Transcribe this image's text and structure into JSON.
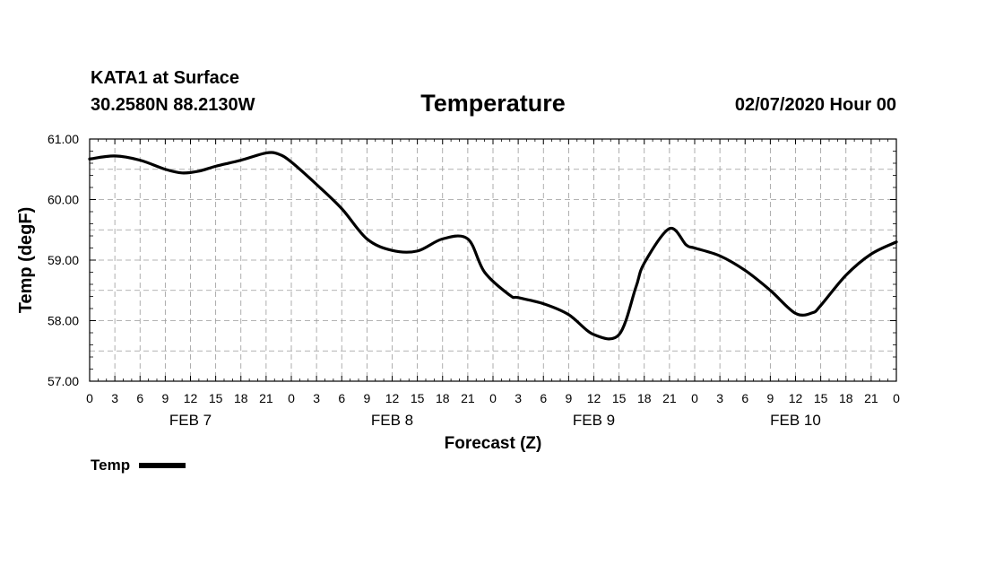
{
  "header": {
    "station": "KATA1 at Surface",
    "coords": "30.2580N 88.2130W",
    "title": "Temperature",
    "run": "02/07/2020 Hour 00"
  },
  "legend": {
    "label": "Temp"
  },
  "chart_data": {
    "type": "line",
    "title": "Temperature",
    "xlabel": "Forecast (Z)",
    "ylabel": "Temp (degF)",
    "ylim": [
      57.0,
      61.0
    ],
    "xlim": [
      0,
      96
    ],
    "grid": true,
    "legend_position": "bottom-left",
    "yticks": [
      "57.00",
      "58.00",
      "59.00",
      "60.00",
      "61.00"
    ],
    "xtick_labels": [
      "0",
      "3",
      "6",
      "9",
      "12",
      "15",
      "18",
      "21",
      "0",
      "3",
      "6",
      "9",
      "12",
      "15",
      "18",
      "21",
      "0",
      "3",
      "6",
      "9",
      "12",
      "15",
      "18",
      "21",
      "0",
      "3",
      "6",
      "9",
      "12",
      "15",
      "18",
      "21",
      "0"
    ],
    "day_labels": [
      {
        "label": "FEB 7",
        "hour": 12
      },
      {
        "label": "FEB 8",
        "hour": 36
      },
      {
        "label": "FEB 9",
        "hour": 60
      },
      {
        "label": "FEB 10",
        "hour": 84
      }
    ],
    "series": [
      {
        "name": "Temp",
        "color": "#000000",
        "x": [
          0,
          3,
          6,
          9,
          11,
          13,
          15,
          18,
          21,
          22.5,
          24,
          27,
          30,
          33,
          36,
          39,
          42,
          45,
          47,
          50,
          51,
          54,
          57,
          60,
          63,
          65,
          66,
          69,
          71,
          72,
          75,
          78,
          81,
          84,
          86,
          87,
          90,
          93,
          96
        ],
        "values": [
          60.67,
          60.72,
          60.65,
          60.5,
          60.44,
          60.47,
          60.55,
          60.65,
          60.77,
          60.75,
          60.62,
          60.25,
          59.85,
          59.35,
          59.16,
          59.15,
          59.35,
          59.35,
          58.8,
          58.42,
          58.38,
          58.28,
          58.1,
          57.77,
          57.77,
          58.55,
          58.95,
          59.52,
          59.25,
          59.2,
          59.07,
          58.83,
          58.5,
          58.12,
          58.13,
          58.25,
          58.75,
          59.1,
          59.3
        ]
      }
    ]
  }
}
